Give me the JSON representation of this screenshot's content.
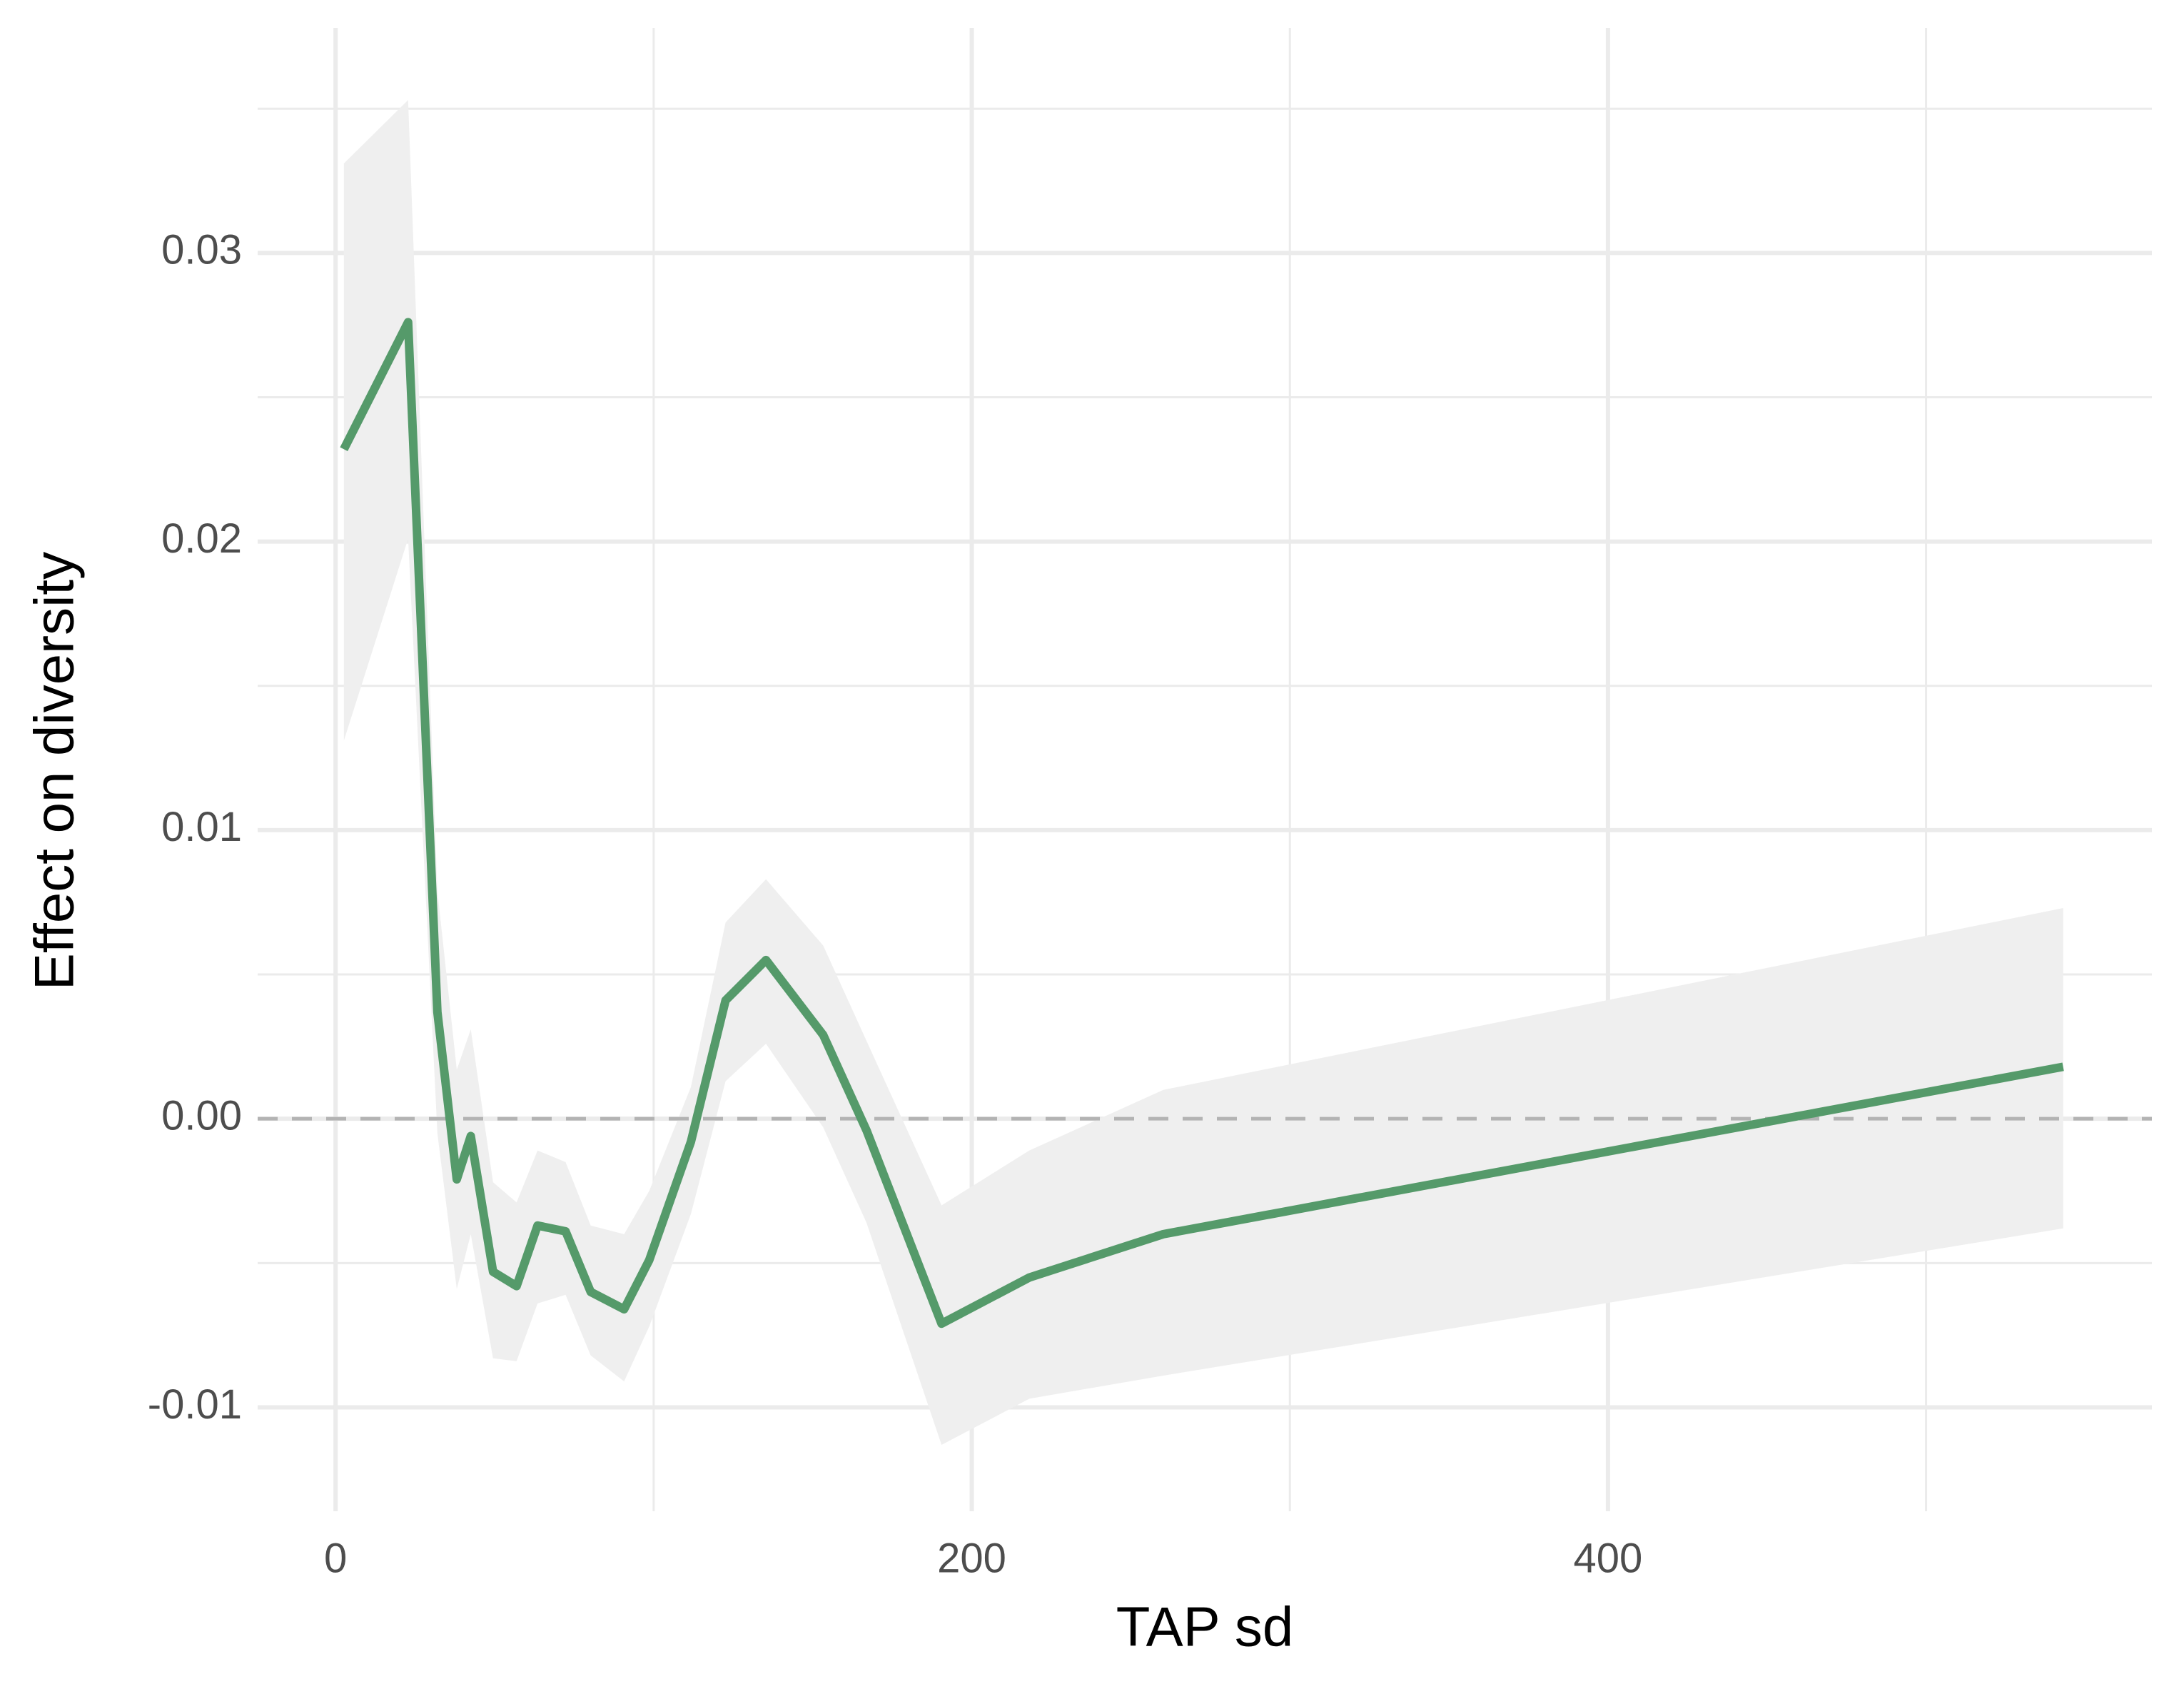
{
  "chart_data": {
    "type": "line",
    "x_label": "TAP sd",
    "y_label": "Effect on diversity",
    "x": [
      2.6,
      22.8,
      32.0,
      38.1,
      42.5,
      49.5,
      56.9,
      63.5,
      72.3,
      80.2,
      90.7,
      98.6,
      111.7,
      122.6,
      135.3,
      153.3,
      166.9,
      190.5,
      218.1,
      260.2,
      543.1
    ],
    "series": [
      {
        "color": "#559a6a",
        "values": [
          0.0232,
          0.0276,
          0.0037,
          -0.0021,
          -0.0006,
          -0.0053,
          -0.0058,
          -0.0037,
          -0.0039,
          -0.006,
          -0.0066,
          -0.0049,
          -0.0008,
          0.0041,
          0.0055,
          0.0029,
          -0.0004,
          -0.0071,
          -0.0055,
          -0.004,
          0.0018
        ],
        "lower": [
          0.0131,
          0.0201,
          -0.0005,
          -0.0059,
          -0.004,
          -0.0083,
          -0.0084,
          -0.0064,
          -0.0061,
          -0.0082,
          -0.0091,
          -0.0072,
          -0.0033,
          0.0013,
          0.0026,
          -0.0003,
          -0.0036,
          -0.0113,
          -0.0097,
          -0.0089,
          -0.0038
        ],
        "upper": [
          0.0331,
          0.0353,
          0.0079,
          0.0017,
          0.0031,
          -0.0022,
          -0.0029,
          -0.0011,
          -0.0015,
          -0.0037,
          -0.004,
          -0.0025,
          0.0011,
          0.0068,
          0.0083,
          0.006,
          0.0027,
          -0.003,
          -0.0011,
          0.001,
          0.0073
        ],
        "band_color": "#efefef"
      }
    ],
    "xlim": [
      -24.5,
      571
    ],
    "ylim": [
      -0.0136,
      0.0378
    ],
    "xticks": [
      0,
      200,
      400
    ],
    "yticks": [
      -0.01,
      {
        "value": 0,
        "label": "0.00"
      },
      0.01,
      0.02,
      0.03
    ],
    "hline": 0,
    "grid": true
  }
}
